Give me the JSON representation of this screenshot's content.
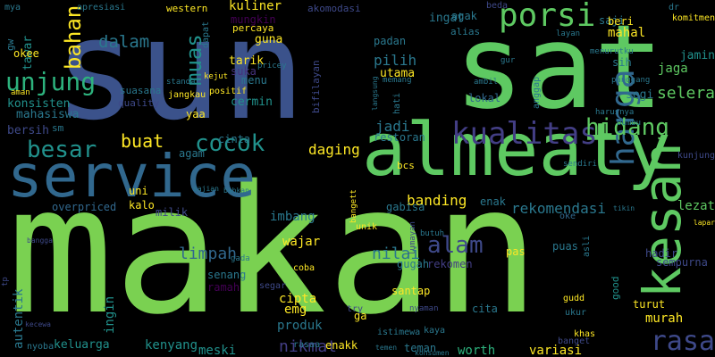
{
  "words": [
    {
      "text": "makan",
      "color": "#7ad151"
    },
    {
      "text": "sun",
      "color": "#3b528b"
    },
    {
      "text": "sat",
      "color": "#5ec962"
    },
    {
      "text": "service",
      "color": "#31688e"
    },
    {
      "text": "almeaty",
      "color": "#5ec962"
    },
    {
      "text": "porsi",
      "color": "#5ec962"
    },
    {
      "text": "kualitas",
      "color": "#433e85"
    },
    {
      "text": "kesan",
      "color": "#5ec962"
    },
    {
      "text": "harga",
      "color": "#31688e"
    },
    {
      "text": "unjung",
      "color": "#2db27d"
    },
    {
      "text": "rasa",
      "color": "#3e4989"
    },
    {
      "text": "besar",
      "color": "#21918c"
    },
    {
      "text": "hidang",
      "color": "#5ec962"
    },
    {
      "text": "cocok",
      "color": "#21918c"
    },
    {
      "text": "alam",
      "color": "#3e4989"
    },
    {
      "text": "bahan",
      "color": "#fde725"
    },
    {
      "text": "muas",
      "color": "#21918c"
    },
    {
      "text": "buat",
      "color": "#fde725"
    },
    {
      "text": "suka",
      "color": "#46327e"
    },
    {
      "text": "dalam",
      "color": "#2a788e"
    },
    {
      "text": "limpah",
      "color": "#31688e"
    },
    {
      "text": "nilai",
      "color": "#2a788e"
    },
    {
      "text": "nikmat",
      "color": "#433e85"
    },
    {
      "text": "rekomendasi",
      "color": "#2a788e"
    },
    {
      "text": "selera",
      "color": "#5ec962"
    },
    {
      "text": "jadi",
      "color": "#2a788e"
    },
    {
      "text": "daging",
      "color": "#fde725"
    },
    {
      "text": "banding",
      "color": "#fde725"
    },
    {
      "text": "pilih",
      "color": "#2a788e"
    },
    {
      "text": "kuliner",
      "color": "#fde725"
    },
    {
      "text": "jaga",
      "color": "#5ec962"
    },
    {
      "text": "lezat",
      "color": "#5ec962"
    },
    {
      "text": "mahal",
      "color": "#fde725"
    },
    {
      "text": "murah",
      "color": "#fde725"
    },
    {
      "text": "autentik",
      "color": "#2a788e"
    },
    {
      "text": "ingin",
      "color": "#21918c"
    },
    {
      "text": "variasi",
      "color": "#fde725"
    },
    {
      "text": "worth",
      "color": "#2db27d"
    },
    {
      "text": "meski",
      "color": "#21918c"
    },
    {
      "text": "kenyang",
      "color": "#21918c"
    },
    {
      "text": "keluarga",
      "color": "#21918c"
    },
    {
      "text": "cipta",
      "color": "#fde725"
    },
    {
      "text": "emg",
      "color": "#fde725"
    },
    {
      "text": "produk",
      "color": "#2a788e"
    },
    {
      "text": "wajar",
      "color": "#fde725"
    },
    {
      "text": "imbang",
      "color": "#2a788e"
    },
    {
      "text": "mahasiswa",
      "color": "#2a788e"
    },
    {
      "text": "konsisten",
      "color": "#21918c"
    },
    {
      "text": "bersih",
      "color": "#3e4989"
    },
    {
      "text": "tawar",
      "color": "#21918c"
    },
    {
      "text": "okee",
      "color": "#fde725"
    },
    {
      "text": "cermin",
      "color": "#21918c"
    },
    {
      "text": "menu",
      "color": "#2a788e"
    },
    {
      "text": "tarik",
      "color": "#fde725"
    },
    {
      "text": "guna",
      "color": "#fde725"
    },
    {
      "text": "mungkin",
      "color": "#440154"
    },
    {
      "text": "ingat",
      "color": "#2a788e"
    },
    {
      "text": "padan",
      "color": "#2a788e"
    },
    {
      "text": "utama",
      "color": "#fde725"
    },
    {
      "text": "agak",
      "color": "#2a788e"
    },
    {
      "text": "saji",
      "color": "#2a788e"
    },
    {
      "text": "beri",
      "color": "#fde725"
    },
    {
      "text": "jamin",
      "color": "#21918c"
    },
    {
      "text": "sih",
      "color": "#2a788e"
    },
    {
      "text": "segi",
      "color": "#2a788e"
    },
    {
      "text": "restoran",
      "color": "#2a788e"
    },
    {
      "text": "cinta",
      "color": "#2a788e"
    },
    {
      "text": "agam",
      "color": "#2a788e"
    },
    {
      "text": "yaa",
      "color": "#fde725"
    },
    {
      "text": "kalo",
      "color": "#fde725"
    },
    {
      "text": "uni",
      "color": "#fde725"
    },
    {
      "text": "milik",
      "color": "#3e4989"
    },
    {
      "text": "overpriced",
      "color": "#31688e"
    },
    {
      "text": "enak",
      "color": "#2a788e"
    },
    {
      "text": "gabisa",
      "color": "#2a788e"
    },
    {
      "text": "lokal",
      "color": "#31688e"
    },
    {
      "text": "pas",
      "color": "#fde725"
    },
    {
      "text": "puas",
      "color": "#2a788e"
    },
    {
      "text": "santap",
      "color": "#fde725"
    },
    {
      "text": "rekomen",
      "color": "#433e85"
    },
    {
      "text": "gugah",
      "color": "#2a788e"
    },
    {
      "text": "senang",
      "color": "#2a788e"
    },
    {
      "text": "ramah",
      "color": "#440154"
    },
    {
      "text": "ga",
      "color": "#fde725"
    },
    {
      "text": "cita",
      "color": "#2a788e"
    },
    {
      "text": "teman",
      "color": "#2a788e"
    },
    {
      "text": "enakk",
      "color": "#fde725"
    },
    {
      "text": "turut",
      "color": "#fde725"
    },
    {
      "text": "hadir",
      "color": "#3e4989"
    },
    {
      "text": "sempurna",
      "color": "#3e4989"
    },
    {
      "text": "good",
      "color": "#21918c"
    },
    {
      "text": "bcs",
      "color": "#fde725"
    },
    {
      "text": "sm",
      "color": "#2a788e"
    },
    {
      "text": "quality",
      "color": "#3e4989"
    },
    {
      "text": "suasana",
      "color": "#2a788e"
    },
    {
      "text": "gw",
      "color": "#2a788e"
    },
    {
      "text": "percaya",
      "color": "#fde725"
    },
    {
      "text": "western",
      "color": "#fde725"
    },
    {
      "text": "akomodasi",
      "color": "#3e4989"
    },
    {
      "text": "alias",
      "color": "#2a788e"
    },
    {
      "text": "dapat",
      "color": "#2a788e"
    },
    {
      "text": "bifilayan",
      "color": "#3e4989"
    },
    {
      "text": "kunjung",
      "color": "#3e4989"
    },
    {
      "text": "unik",
      "color": "#fde725"
    },
    {
      "text": "asli",
      "color": "#2a788e"
    },
    {
      "text": "khas",
      "color": "#fde725"
    },
    {
      "text": "istimewa",
      "color": "#2a788e"
    },
    {
      "text": "segar",
      "color": "#3e4989"
    },
    {
      "text": "coba",
      "color": "#fde725"
    },
    {
      "text": "try",
      "color": "#3e4989"
    },
    {
      "text": "rasaa",
      "color": "#2a788e"
    },
    {
      "text": "banget",
      "color": "#3e4989"
    },
    {
      "text": "kaya",
      "color": "#2a788e"
    },
    {
      "text": "gudd",
      "color": "#fde725"
    },
    {
      "text": "ukur",
      "color": "#2a788e"
    },
    {
      "text": "nyoba",
      "color": "#2a788e"
    },
    {
      "text": "beda",
      "color": "#3e4989"
    },
    {
      "text": "dr",
      "color": "#2a788e"
    },
    {
      "text": "komitmen",
      "color": "#fde725"
    },
    {
      "text": "positif",
      "color": "#fde725"
    },
    {
      "text": "jangkau",
      "color": "#fde725"
    },
    {
      "text": "apresiasi",
      "color": "#2a788e"
    },
    {
      "text": "mya",
      "color": "#2a788e"
    },
    {
      "text": "layan",
      "color": "#2a788e"
    },
    {
      "text": "bumbu",
      "color": "#2a788e"
    },
    {
      "text": "pricey",
      "color": "#2a788e"
    },
    {
      "text": "tp",
      "color": "#3e4989"
    },
    {
      "text": "lumayan",
      "color": "#3e4989"
    },
    {
      "text": "bangett",
      "color": "#fde725"
    },
    {
      "text": "oke",
      "color": "#31688e"
    },
    {
      "text": "butuh",
      "color": "#2a788e"
    },
    {
      "text": "gada",
      "color": "#2a788e"
    },
    {
      "text": "nyaman",
      "color": "#3e4989"
    },
    {
      "text": "sendiri",
      "color": "#2a788e"
    },
    {
      "text": "hati",
      "color": "#2a788e"
    },
    {
      "text": "anggap",
      "color": "#2a788e"
    },
    {
      "text": "ambil",
      "color": "#2a788e"
    },
    {
      "text": "konsumen",
      "color": "#2a788e"
    },
    {
      "text": "temen",
      "color": "#2a788e"
    },
    {
      "text": "kejut",
      "color": "#fde725"
    },
    {
      "text": "standar",
      "color": "#2a788e"
    },
    {
      "text": "panggang",
      "color": "#2a788e"
    },
    {
      "text": "menurutku",
      "color": "#2a788e"
    },
    {
      "text": "harusnya",
      "color": "#2a788e"
    },
    {
      "text": "memang",
      "color": "#2a788e"
    },
    {
      "text": "langsung",
      "color": "#2a788e"
    },
    {
      "text": "gur",
      "color": "#2a788e"
    },
    {
      "text": "lapar",
      "color": "#fde725"
    },
    {
      "text": "tikin",
      "color": "#2a788e"
    },
    {
      "text": "bahkan",
      "color": "#2a788e"
    },
    {
      "text": "sajian",
      "color": "#2a788e"
    },
    {
      "text": "aman",
      "color": "#fde725"
    },
    {
      "text": "bangga",
      "color": "#3e4989"
    },
    {
      "text": "kecewa",
      "color": "#3e4989"
    }
  ]
}
